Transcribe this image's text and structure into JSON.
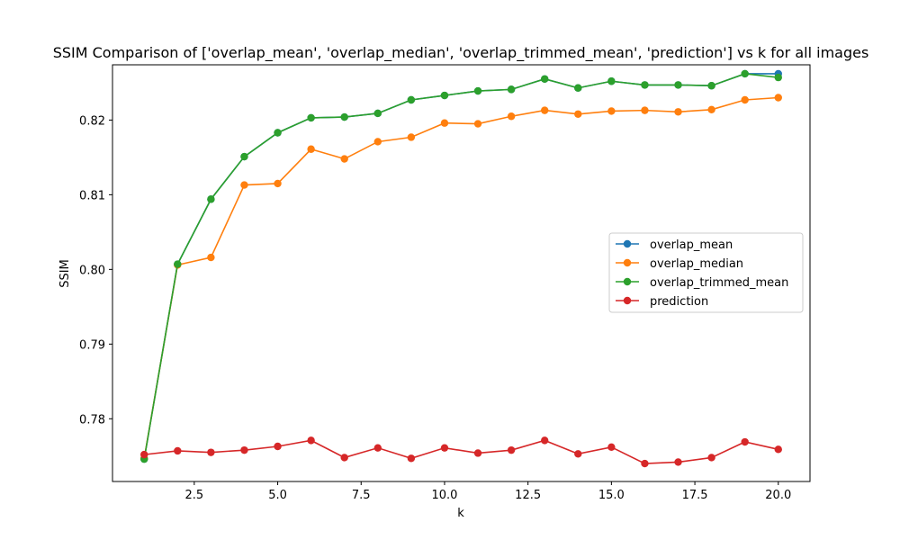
{
  "chart_data": {
    "type": "line",
    "title": "SSIM Comparison of ['overlap_mean', 'overlap_median', 'overlap_trimmed_mean', 'prediction'] vs k for all images",
    "xlabel": "k",
    "ylabel": "SSIM",
    "xlim": [
      0.05,
      20.95
    ],
    "ylim": [
      0.7716,
      0.8274
    ],
    "xticks": [
      2.5,
      5.0,
      7.5,
      10.0,
      12.5,
      15.0,
      17.5,
      20.0
    ],
    "xtick_labels": [
      "2.5",
      "5.0",
      "7.5",
      "10.0",
      "12.5",
      "15.0",
      "17.5",
      "20.0"
    ],
    "yticks": [
      0.78,
      0.79,
      0.8,
      0.81,
      0.82
    ],
    "ytick_labels": [
      "0.78",
      "0.79",
      "0.80",
      "0.81",
      "0.82"
    ],
    "grid": false,
    "legend_position": "center-right",
    "x": [
      1,
      2,
      3,
      4,
      5,
      6,
      7,
      8,
      9,
      10,
      11,
      12,
      13,
      14,
      15,
      16,
      17,
      18,
      19,
      20
    ],
    "series": [
      {
        "name": "overlap_mean",
        "color": "#1f77b4",
        "values": [
          0.7746,
          0.8007,
          0.8094,
          0.8151,
          0.8183,
          0.8203,
          0.8204,
          0.8209,
          0.8227,
          0.8233,
          0.8239,
          0.8241,
          0.8255,
          0.8243,
          0.8252,
          0.8247,
          0.8247,
          0.8246,
          0.8262,
          0.8262
        ]
      },
      {
        "name": "overlap_median",
        "color": "#ff7f0e",
        "values": [
          0.7747,
          0.8006,
          0.8016,
          0.8113,
          0.8115,
          0.8161,
          0.8148,
          0.8171,
          0.8177,
          0.8196,
          0.8195,
          0.8205,
          0.8213,
          0.8208,
          0.8212,
          0.8213,
          0.8211,
          0.8214,
          0.8227,
          0.823
        ]
      },
      {
        "name": "overlap_trimmed_mean",
        "color": "#2ca02c",
        "values": [
          0.7746,
          0.8007,
          0.8094,
          0.8151,
          0.8183,
          0.8203,
          0.8204,
          0.8209,
          0.8227,
          0.8233,
          0.8239,
          0.8241,
          0.8255,
          0.8243,
          0.8252,
          0.8247,
          0.8247,
          0.8246,
          0.8262,
          0.8257
        ]
      },
      {
        "name": "prediction",
        "color": "#d62728",
        "values": [
          0.7752,
          0.7757,
          0.7755,
          0.7758,
          0.7763,
          0.7771,
          0.7748,
          0.7761,
          0.7747,
          0.7761,
          0.7754,
          0.7758,
          0.7771,
          0.7753,
          0.7762,
          0.774,
          0.7742,
          0.7748,
          0.7769,
          0.7759
        ]
      }
    ]
  }
}
